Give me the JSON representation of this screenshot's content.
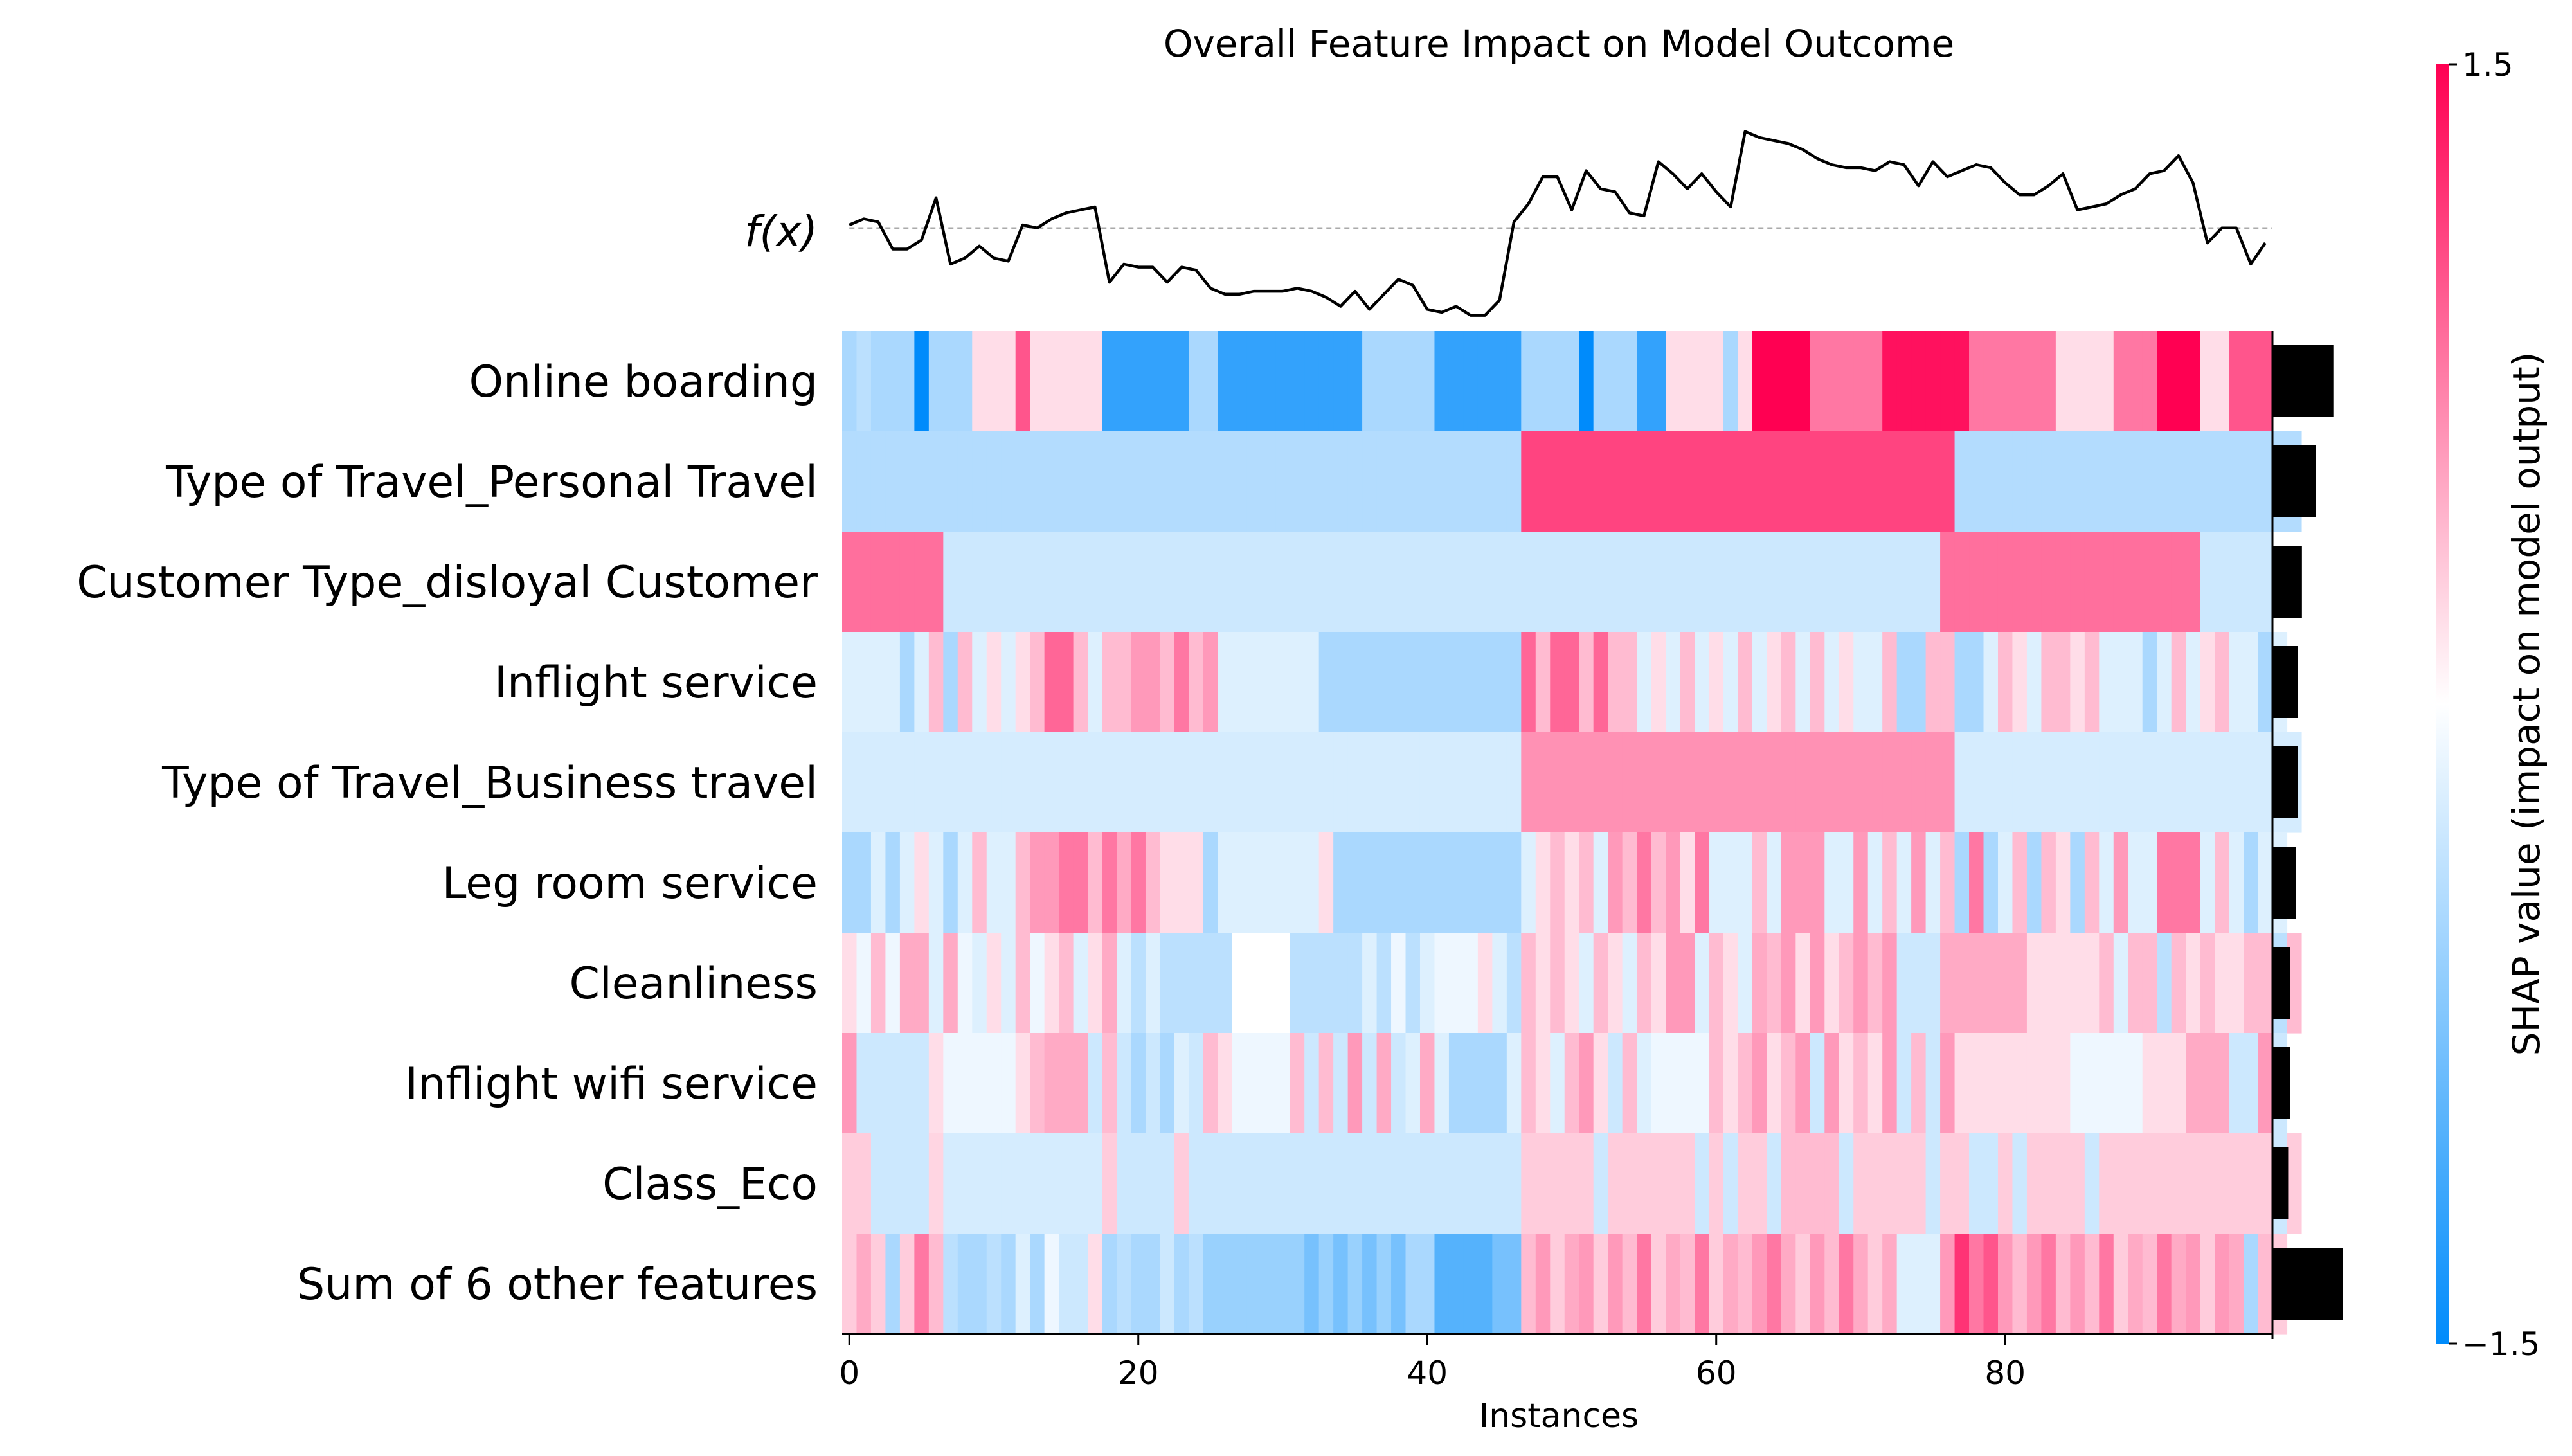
{
  "chart_data": {
    "type": "heatmap",
    "title": "Overall Feature Impact on Model Outcome",
    "xlabel": "Instances",
    "fx_label": "f(x)",
    "colorbar_label": "SHAP value (impact on model output)",
    "colorbar_range": [
      -1.5,
      1.5
    ],
    "colorbar_ticks": [
      "1.5",
      "−1.5"
    ],
    "x_ticks": [
      0,
      20,
      40,
      60,
      80
    ],
    "x_tick_labels": [
      "0",
      "20",
      "40",
      "60",
      "80"
    ],
    "xlim": [
      -0.5,
      98.5
    ],
    "n_instances": 99,
    "colors": {
      "negative": "#008bfb",
      "neutral": "#ffffff",
      "positive": "#ff0052"
    },
    "features": [
      "Online boarding",
      "Type of Travel_Personal Travel",
      "Customer Type_disloyal Customer",
      "Inflight service",
      "Type of Travel_Business travel",
      "Leg room service",
      "Cleanliness",
      "Inflight wifi service",
      "Class_Eco",
      "Sum of 6 other features"
    ],
    "feature_importance": [
      0.62,
      0.44,
      0.3,
      0.26,
      0.26,
      0.24,
      0.18,
      0.18,
      0.16,
      0.72
    ],
    "fx_values": [
      0.05,
      0.15,
      0.1,
      -0.35,
      -0.35,
      -0.2,
      0.5,
      -0.6,
      -0.5,
      -0.3,
      -0.5,
      -0.55,
      0.05,
      0.0,
      0.15,
      0.25,
      0.3,
      0.35,
      -0.9,
      -0.6,
      -0.65,
      -0.65,
      -0.9,
      -0.65,
      -0.7,
      -1.0,
      -1.1,
      -1.1,
      -1.05,
      -1.05,
      -1.05,
      -1.0,
      -1.05,
      -1.15,
      -1.3,
      -1.05,
      -1.35,
      -1.1,
      -0.85,
      -0.95,
      -1.35,
      -1.4,
      -1.3,
      -1.45,
      -1.45,
      -1.2,
      0.1,
      0.4,
      0.85,
      0.85,
      0.3,
      0.95,
      0.65,
      0.6,
      0.25,
      0.2,
      1.1,
      0.9,
      0.65,
      0.9,
      0.6,
      0.35,
      1.6,
      1.5,
      1.45,
      1.4,
      1.3,
      1.15,
      1.05,
      1.0,
      1.0,
      0.95,
      1.1,
      1.05,
      0.7,
      1.1,
      0.85,
      0.95,
      1.05,
      1.0,
      0.75,
      0.55,
      0.55,
      0.7,
      0.9,
      0.3,
      0.35,
      0.4,
      0.55,
      0.65,
      0.9,
      0.95,
      1.2,
      0.75,
      -0.25,
      0.0,
      0.0,
      -0.6,
      -0.25
    ],
    "shap_values": [
      [
        -0.5,
        -0.4,
        -0.5,
        -0.5,
        -0.5,
        -1.5,
        -0.5,
        -0.5,
        -0.5,
        0.2,
        0.2,
        0.2,
        1.0,
        0.2,
        0.2,
        0.2,
        0.2,
        0.2,
        -1.2,
        -1.2,
        -1.2,
        -1.2,
        -1.2,
        -1.2,
        -0.5,
        -0.5,
        -1.2,
        -1.2,
        -1.2,
        -1.2,
        -1.2,
        -1.2,
        -1.2,
        -1.2,
        -1.2,
        -1.2,
        -0.5,
        -0.5,
        -0.5,
        -0.5,
        -0.5,
        -1.2,
        -1.2,
        -1.2,
        -1.2,
        -1.2,
        -1.2,
        -0.5,
        -0.5,
        -0.5,
        -0.5,
        -1.5,
        -0.5,
        -0.5,
        -0.5,
        -1.2,
        -1.2,
        0.2,
        0.2,
        0.2,
        0.2,
        -0.5,
        0.2,
        1.5,
        1.5,
        1.5,
        1.5,
        0.8,
        0.8,
        0.8,
        0.8,
        0.8,
        1.4,
        1.4,
        1.4,
        1.4,
        1.4,
        1.4,
        0.8,
        0.8,
        0.8,
        0.8,
        0.8,
        0.8,
        0.2,
        0.2,
        0.2,
        0.2,
        0.8,
        0.8,
        0.8,
        1.5,
        1.5,
        1.5,
        0.2,
        0.2,
        1.0,
        1.0,
        1.0
      ],
      [
        -0.45,
        -0.45,
        -0.45,
        -0.45,
        -0.45,
        -0.45,
        -0.45,
        -0.45,
        -0.45,
        -0.45,
        -0.45,
        -0.45,
        -0.45,
        -0.45,
        -0.45,
        -0.45,
        -0.45,
        -0.45,
        -0.45,
        -0.45,
        -0.45,
        -0.45,
        -0.45,
        -0.45,
        -0.45,
        -0.45,
        -0.45,
        -0.45,
        -0.45,
        -0.45,
        -0.45,
        -0.45,
        -0.45,
        -0.45,
        -0.45,
        -0.45,
        -0.45,
        -0.45,
        -0.45,
        -0.45,
        -0.45,
        -0.45,
        -0.45,
        -0.45,
        -0.45,
        -0.45,
        -0.45,
        1.1,
        1.1,
        1.1,
        1.1,
        1.1,
        1.1,
        1.1,
        1.1,
        1.1,
        1.1,
        1.1,
        1.1,
        1.1,
        1.1,
        1.1,
        1.1,
        1.1,
        1.1,
        1.1,
        1.1,
        1.1,
        1.1,
        1.1,
        1.1,
        1.1,
        1.1,
        1.1,
        1.1,
        1.1,
        1.1,
        -0.45,
        -0.45,
        -0.45,
        -0.45,
        -0.45,
        -0.45,
        -0.45,
        -0.45,
        -0.45,
        -0.45,
        -0.45,
        -0.45,
        -0.45,
        -0.45,
        -0.45,
        -0.45,
        -0.45,
        -0.45,
        -0.45,
        -0.45,
        -0.45,
        -0.45,
        -0.45,
        -0.45
      ],
      [
        0.85,
        0.85,
        0.85,
        0.85,
        0.85,
        0.85,
        0.85,
        -0.3,
        -0.3,
        -0.3,
        -0.3,
        -0.3,
        -0.3,
        -0.3,
        -0.3,
        -0.3,
        -0.3,
        -0.3,
        -0.3,
        -0.3,
        -0.3,
        -0.3,
        -0.3,
        -0.3,
        -0.3,
        -0.3,
        -0.3,
        -0.3,
        -0.3,
        -0.3,
        -0.3,
        -0.3,
        -0.3,
        -0.3,
        -0.3,
        -0.3,
        -0.3,
        -0.3,
        -0.3,
        -0.3,
        -0.3,
        -0.3,
        -0.3,
        -0.3,
        -0.3,
        -0.3,
        -0.3,
        -0.3,
        -0.3,
        -0.3,
        -0.3,
        -0.3,
        -0.3,
        -0.3,
        -0.3,
        -0.3,
        -0.3,
        -0.3,
        -0.3,
        -0.3,
        -0.3,
        -0.3,
        -0.3,
        -0.3,
        -0.3,
        -0.3,
        -0.3,
        -0.3,
        -0.3,
        -0.3,
        -0.3,
        -0.3,
        -0.3,
        -0.3,
        -0.3,
        -0.3,
        0.85,
        0.85,
        0.85,
        0.85,
        0.85,
        0.85,
        0.85,
        0.85,
        0.85,
        0.85,
        0.85,
        0.85,
        0.85,
        0.85,
        0.85,
        0.85,
        0.85,
        0.85,
        -0.3,
        -0.3,
        -0.3,
        -0.3,
        -0.3
      ],
      [
        -0.2,
        -0.2,
        -0.2,
        -0.2,
        -0.5,
        -0.2,
        0.4,
        -0.5,
        0.4,
        -0.2,
        0.2,
        -0.2,
        0.2,
        0.4,
        0.9,
        0.9,
        0.4,
        -0.2,
        0.4,
        0.4,
        0.6,
        0.6,
        0.4,
        0.8,
        0.4,
        0.6,
        -0.2,
        -0.2,
        -0.2,
        -0.2,
        -0.2,
        -0.2,
        -0.2,
        -0.5,
        -0.5,
        -0.5,
        -0.5,
        -0.5,
        -0.5,
        -0.5,
        -0.5,
        -0.5,
        -0.5,
        -0.5,
        -0.5,
        -0.5,
        -0.5,
        0.9,
        0.4,
        0.9,
        0.9,
        0.4,
        0.9,
        0.4,
        0.4,
        -0.2,
        0.2,
        -0.2,
        0.4,
        -0.2,
        0.2,
        -0.2,
        0.4,
        -0.2,
        0.2,
        0.4,
        -0.2,
        0.4,
        -0.2,
        0.2,
        -0.2,
        -0.2,
        0.4,
        -0.5,
        -0.5,
        0.4,
        0.4,
        -0.5,
        -0.5,
        -0.2,
        0.4,
        0.2,
        -0.2,
        0.4,
        0.4,
        0.2,
        0.4,
        -0.2,
        -0.2,
        -0.2,
        -0.5,
        -0.2,
        0.4,
        -0.2,
        0.2,
        0.4,
        -0.2,
        -0.2,
        -0.5,
        -0.2
      ],
      [
        -0.25,
        -0.25,
        -0.25,
        -0.25,
        -0.25,
        -0.25,
        -0.25,
        -0.25,
        -0.25,
        -0.25,
        -0.25,
        -0.25,
        -0.25,
        -0.25,
        -0.25,
        -0.25,
        -0.25,
        -0.25,
        -0.25,
        -0.25,
        -0.25,
        -0.25,
        -0.25,
        -0.25,
        -0.25,
        -0.25,
        -0.25,
        -0.25,
        -0.25,
        -0.25,
        -0.25,
        -0.25,
        -0.25,
        -0.25,
        -0.25,
        -0.25,
        -0.25,
        -0.25,
        -0.25,
        -0.25,
        -0.25,
        -0.25,
        -0.25,
        -0.25,
        -0.25,
        -0.25,
        -0.25,
        0.65,
        0.65,
        0.65,
        0.65,
        0.65,
        0.65,
        0.65,
        0.65,
        0.65,
        0.65,
        0.65,
        0.65,
        0.65,
        0.65,
        0.65,
        0.65,
        0.65,
        0.65,
        0.65,
        0.65,
        0.65,
        0.65,
        0.65,
        0.65,
        0.65,
        0.65,
        0.65,
        0.65,
        0.65,
        0.65,
        -0.25,
        -0.25,
        -0.25,
        -0.25,
        -0.25,
        -0.25,
        -0.25,
        -0.25,
        -0.25,
        -0.25,
        -0.25,
        -0.25,
        -0.25,
        -0.25,
        -0.25,
        -0.25,
        -0.25,
        -0.25,
        -0.25,
        -0.25,
        -0.25,
        -0.25,
        -0.25,
        -0.25
      ],
      [
        -0.5,
        -0.5,
        -0.2,
        -0.5,
        -0.2,
        0.2,
        -0.2,
        -0.5,
        -0.2,
        0.4,
        -0.2,
        -0.2,
        0.4,
        0.6,
        0.6,
        0.8,
        0.8,
        0.4,
        0.8,
        0.5,
        0.8,
        0.4,
        0.2,
        0.2,
        0.2,
        -0.5,
        -0.2,
        -0.2,
        -0.2,
        -0.2,
        -0.2,
        -0.2,
        -0.2,
        0.2,
        -0.5,
        -0.5,
        -0.5,
        -0.5,
        -0.5,
        -0.5,
        -0.5,
        -0.5,
        -0.5,
        -0.5,
        -0.5,
        -0.5,
        -0.5,
        -0.2,
        0.2,
        0.4,
        0.2,
        0.4,
        -0.2,
        0.6,
        0.4,
        0.8,
        0.4,
        0.6,
        0.2,
        0.8,
        -0.2,
        -0.2,
        -0.2,
        0.4,
        -0.2,
        0.6,
        0.6,
        0.6,
        -0.2,
        -0.2,
        0.6,
        -0.2,
        0.4,
        -0.2,
        0.6,
        -0.2,
        0.4,
        -0.5,
        0.8,
        -0.5,
        -0.2,
        0.4,
        -0.5,
        0.4,
        0.2,
        -0.5,
        0.4,
        -0.2,
        0.6,
        -0.2,
        -0.2,
        0.8,
        0.8,
        0.8,
        -0.2,
        0.4,
        -0.2,
        -0.5,
        -0.2,
        -0.2
      ],
      [
        0.2,
        -0.1,
        0.4,
        -0.1,
        0.5,
        0.5,
        -0.2,
        0.5,
        -0.1,
        -0.2,
        0.2,
        -0.2,
        0.4,
        -0.1,
        0.2,
        0.4,
        -0.2,
        0.2,
        0.5,
        -0.2,
        -0.4,
        -0.2,
        -0.4,
        -0.4,
        -0.4,
        -0.4,
        -0.4,
        0.0,
        0.0,
        0.0,
        0.0,
        -0.4,
        -0.4,
        -0.4,
        -0.4,
        -0.4,
        -0.2,
        -0.4,
        -0.1,
        -0.4,
        -0.2,
        -0.1,
        -0.1,
        -0.1,
        0.2,
        -0.2,
        -0.4,
        0.4,
        0.2,
        0.4,
        0.2,
        -0.2,
        0.4,
        0.2,
        -0.2,
        0.4,
        0.2,
        0.6,
        0.6,
        -0.2,
        0.4,
        0.2,
        -0.2,
        0.5,
        0.4,
        0.6,
        0.2,
        0.6,
        0.2,
        0.4,
        0.6,
        0.4,
        0.6,
        -0.3,
        -0.3,
        -0.3,
        0.5,
        0.5,
        0.5,
        0.5,
        0.5,
        0.5,
        0.2,
        0.2,
        0.2,
        0.2,
        0.2,
        0.4,
        -0.2,
        0.4,
        0.4,
        -0.4,
        0.4,
        0.2,
        0.4,
        0.2,
        0.2,
        0.4,
        0.4,
        -0.4,
        0.4
      ],
      [
        0.6,
        -0.3,
        -0.3,
        -0.3,
        -0.3,
        -0.3,
        0.2,
        -0.1,
        -0.1,
        -0.1,
        -0.1,
        -0.1,
        0.2,
        0.4,
        0.5,
        0.5,
        0.5,
        -0.3,
        0.4,
        -0.3,
        -0.5,
        -0.3,
        -0.5,
        -0.2,
        -0.3,
        0.4,
        0.2,
        -0.1,
        -0.1,
        -0.1,
        -0.1,
        0.4,
        -0.3,
        0.4,
        -0.3,
        0.6,
        -0.3,
        0.5,
        -0.3,
        -0.2,
        0.5,
        -0.2,
        -0.5,
        -0.5,
        -0.5,
        -0.5,
        -0.2,
        0.4,
        0.2,
        -0.2,
        0.4,
        0.6,
        0.2,
        -0.3,
        0.4,
        -0.2,
        -0.1,
        -0.1,
        -0.1,
        -0.1,
        0.4,
        0.2,
        0.4,
        0.6,
        0.2,
        0.4,
        0.6,
        -0.3,
        0.6,
        0.2,
        0.4,
        0.2,
        0.6,
        -0.3,
        0.4,
        -0.3,
        0.6,
        0.2,
        0.2,
        0.2,
        0.2,
        0.2,
        0.2,
        0.2,
        0.2,
        -0.1,
        -0.1,
        -0.1,
        -0.1,
        -0.1,
        0.2,
        0.2,
        0.2,
        0.5,
        0.5,
        0.5,
        -0.3,
        -0.3,
        0.6,
        -0.3
      ],
      [
        0.3,
        0.3,
        -0.3,
        -0.3,
        -0.3,
        -0.3,
        0.25,
        -0.25,
        -0.25,
        -0.25,
        -0.25,
        -0.25,
        -0.25,
        -0.25,
        -0.25,
        -0.25,
        -0.25,
        -0.25,
        0.3,
        -0.3,
        -0.3,
        -0.3,
        -0.3,
        0.3,
        -0.3,
        -0.3,
        -0.3,
        -0.3,
        -0.3,
        -0.3,
        -0.3,
        -0.3,
        -0.3,
        -0.3,
        -0.3,
        -0.3,
        -0.3,
        -0.3,
        -0.3,
        -0.3,
        -0.3,
        -0.3,
        -0.3,
        -0.3,
        -0.3,
        -0.3,
        -0.3,
        0.3,
        0.3,
        0.3,
        0.3,
        0.3,
        -0.3,
        0.3,
        0.3,
        0.3,
        0.3,
        0.3,
        0.3,
        -0.3,
        0.3,
        -0.3,
        0.3,
        0.3,
        -0.3,
        0.4,
        0.4,
        0.4,
        0.4,
        -0.3,
        0.3,
        0.3,
        0.3,
        0.3,
        0.3,
        -0.3,
        0.3,
        0.3,
        -0.3,
        -0.3,
        0.3,
        -0.3,
        0.3,
        0.3,
        0.3,
        0.3,
        -0.3,
        0.3,
        0.3,
        0.3,
        0.3,
        0.3,
        0.3,
        0.3,
        0.3,
        0.3,
        0.3,
        0.3,
        0.3,
        -0.3,
        0.3
      ],
      [
        0.3,
        0.5,
        0.3,
        -0.5,
        0.3,
        0.8,
        0.4,
        -0.4,
        -0.5,
        -0.5,
        -0.4,
        -0.5,
        -0.2,
        -0.5,
        -0.1,
        -0.3,
        -0.3,
        0.2,
        -0.5,
        -0.4,
        -0.5,
        -0.5,
        -0.3,
        -0.5,
        -0.4,
        -0.6,
        -0.6,
        -0.6,
        -0.6,
        -0.6,
        -0.6,
        -0.6,
        -0.8,
        -0.6,
        -0.8,
        -0.6,
        -0.8,
        -0.6,
        -0.8,
        -0.5,
        -0.5,
        -1.0,
        -1.0,
        -1.0,
        -1.0,
        -0.8,
        -0.8,
        0.4,
        0.6,
        0.3,
        0.5,
        0.6,
        0.3,
        0.6,
        0.4,
        0.8,
        0.3,
        0.5,
        0.4,
        0.8,
        0.3,
        0.5,
        0.4,
        0.6,
        0.8,
        0.5,
        0.3,
        0.6,
        0.4,
        0.8,
        0.5,
        0.3,
        0.5,
        -0.2,
        -0.2,
        -0.2,
        0.6,
        1.2,
        0.8,
        1.0,
        0.6,
        0.4,
        0.6,
        0.8,
        0.4,
        0.6,
        0.4,
        0.8,
        0.3,
        0.5,
        0.4,
        0.8,
        0.5,
        0.6,
        0.3,
        0.6,
        0.5,
        -0.5,
        0.4,
        0.3
      ]
    ]
  }
}
